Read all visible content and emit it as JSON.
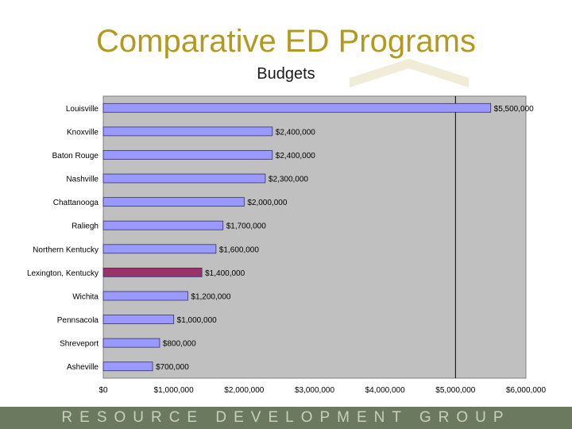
{
  "header": {
    "title": "Comparative ED Programs",
    "subtitle": "Budgets"
  },
  "footer": {
    "text": "RESOURCE DEVELOPMENT GROUP"
  },
  "colors": {
    "title": "#b39a1f",
    "bar": "#9999ff",
    "highlight_bar": "#993366",
    "plot_background": "#c0c0c0",
    "footer": "#6b7a5e"
  },
  "chart_data": {
    "type": "bar",
    "orientation": "horizontal",
    "title": "Budgets",
    "categories": [
      "Louisville",
      "Knoxville",
      "Baton Rouge",
      "Nashville",
      "Chattanooga",
      "Raliegh",
      "Northern Kentucky",
      "Lexington, Kentucky",
      "Wichita",
      "Pennsacola",
      "Shreveport",
      "Asheville"
    ],
    "values": [
      5500000,
      2400000,
      2400000,
      2300000,
      2000000,
      1700000,
      1600000,
      1400000,
      1200000,
      1000000,
      800000,
      700000
    ],
    "data_labels": [
      "$5,500,000",
      "$2,400,000",
      "$2,400,000",
      "$2,300,000",
      "$2,000,000",
      "$1,700,000",
      "$1,600,000",
      "$1,400,000",
      "$1,200,000",
      "$1,000,000",
      "$800,000",
      "$700,000"
    ],
    "highlight_category": "Lexington, Kentucky",
    "xlim": [
      0,
      6000000
    ],
    "xticks": [
      0,
      1000000,
      2000000,
      3000000,
      4000000,
      5000000,
      6000000
    ],
    "xtick_labels": [
      "$0",
      "$1,000,000",
      "$2,000,000",
      "$3,000,000",
      "$4,000,000",
      "$5,000,000",
      "$6,000,000"
    ],
    "reference_line": 5000000,
    "grid": false,
    "legend": "none"
  }
}
